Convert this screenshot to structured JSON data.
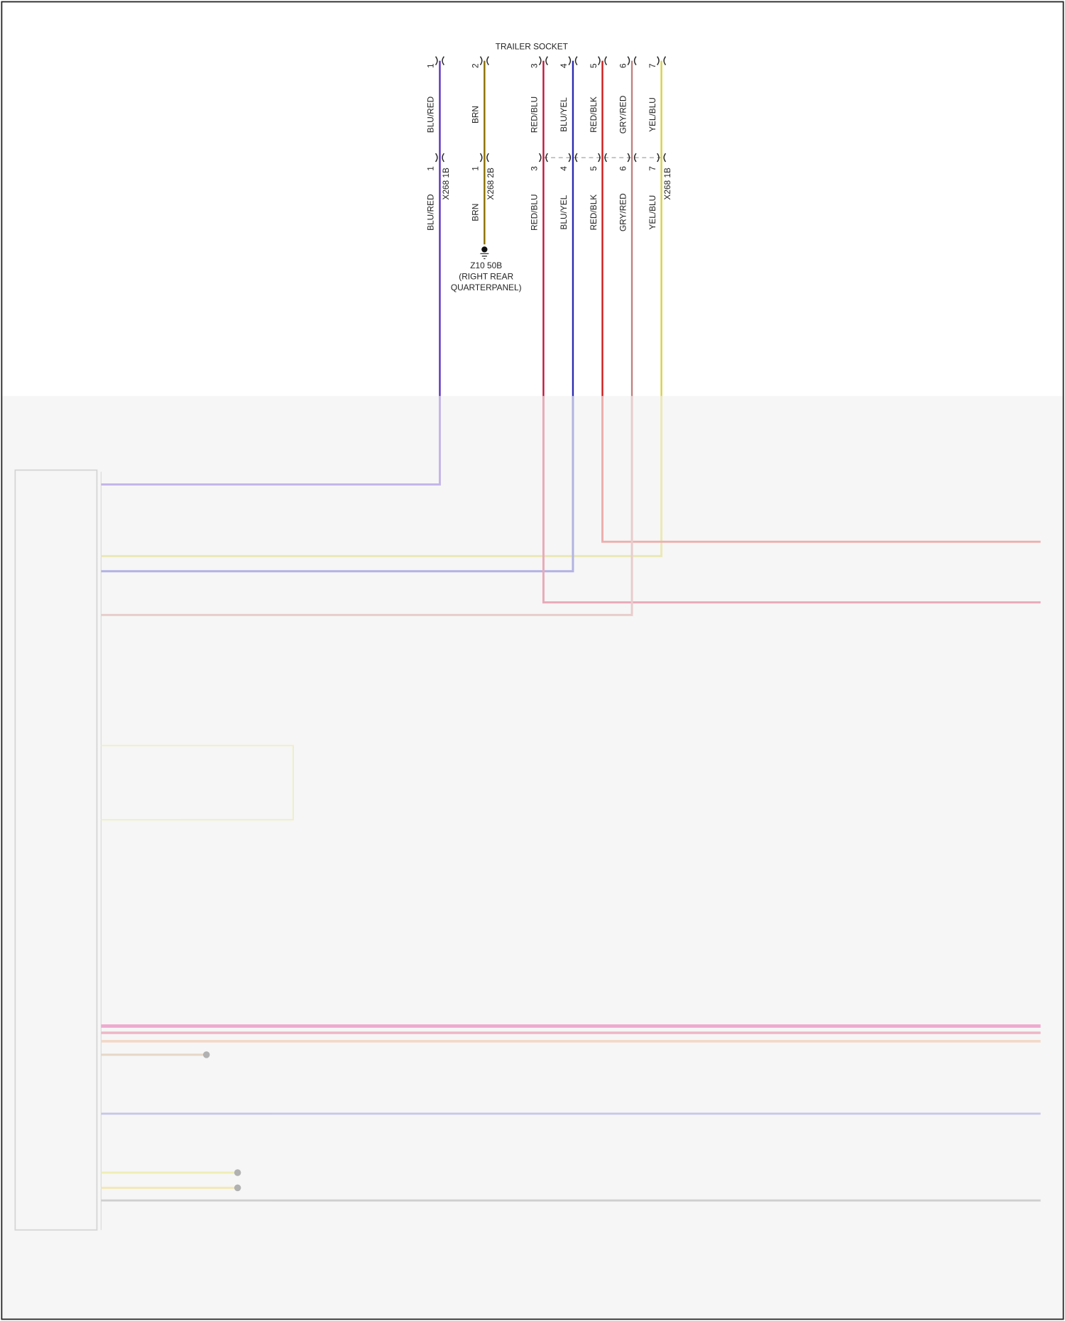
{
  "header": {
    "title": "TRAILER SOCKET"
  },
  "socket_pins": [
    {
      "pin": "1",
      "label": "BLU/RED"
    },
    {
      "pin": "2",
      "label": "BRN"
    },
    {
      "pin": "3",
      "label": "RED/BLU"
    },
    {
      "pin": "4",
      "label": "BLU/YEL"
    },
    {
      "pin": "5",
      "label": "RED/BLK"
    },
    {
      "pin": "6",
      "label": "GRY/RED"
    },
    {
      "pin": "7",
      "label": "YEL/BLU"
    }
  ],
  "connectors": [
    {
      "name": "X268 1B"
    },
    {
      "name": "X268 2B"
    },
    {
      "name": "X268 1B"
    }
  ],
  "harness_pins": [
    {
      "pin": "1",
      "label": "BLU/RED"
    },
    {
      "pin": "1",
      "label": "BRN"
    },
    {
      "pin": "3",
      "label": "RED/BLU"
    },
    {
      "pin": "4",
      "label": "BLU/YEL"
    },
    {
      "pin": "5",
      "label": "RED/BLK"
    },
    {
      "pin": "6",
      "label": "GRY/RED"
    },
    {
      "pin": "7",
      "label": "YEL/BLU"
    }
  ],
  "ground": {
    "name": "Z10 50B",
    "location": [
      "(RIGHT REAR",
      "QUARTERPANEL)"
    ]
  }
}
